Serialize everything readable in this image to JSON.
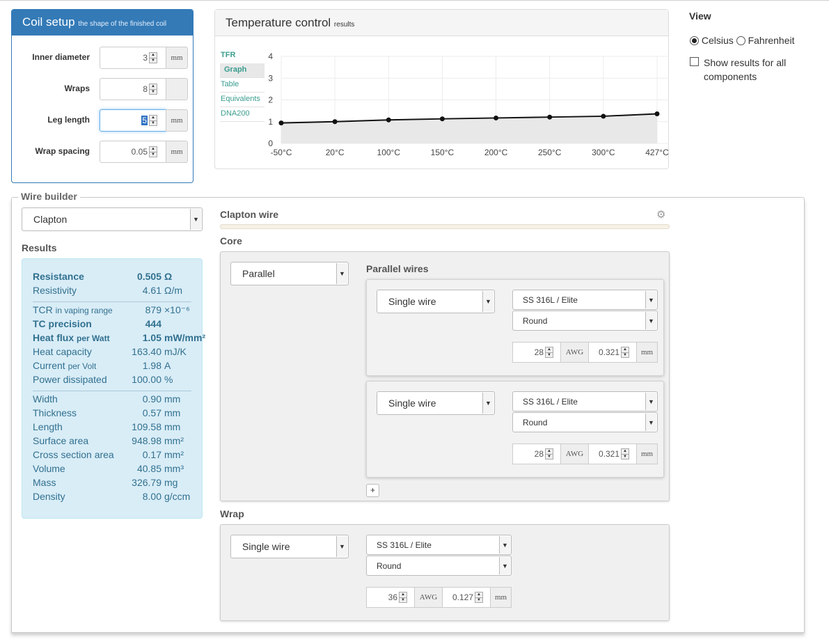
{
  "coil_setup": {
    "title": "Coil setup",
    "subtitle": "the shape of the finished coil",
    "fields": [
      {
        "label": "Inner diameter",
        "value": "3",
        "unit": "mm"
      },
      {
        "label": "Wraps",
        "value": "8",
        "unit": ""
      },
      {
        "label": "Leg length",
        "value": "5",
        "unit": "mm"
      },
      {
        "label": "Wrap spacing",
        "value": "0.05",
        "unit": "mm"
      }
    ]
  },
  "temperature_control": {
    "title": "Temperature control",
    "subtitle": "results",
    "tabs": [
      "TFR",
      "Graph",
      "Table",
      "Equivalents",
      "DNA200"
    ],
    "active_tab": "Graph"
  },
  "chart_data": {
    "type": "area",
    "x": [
      "-50°C",
      "20°C",
      "100°C",
      "150°C",
      "200°C",
      "250°C",
      "300°C",
      "427°C"
    ],
    "values": [
      0.94,
      1.0,
      1.08,
      1.13,
      1.17,
      1.21,
      1.25,
      1.36
    ],
    "yticks": [
      "0",
      "1",
      "2",
      "3",
      "4"
    ],
    "ylim": [
      0,
      4
    ],
    "grid": true,
    "line_color": "#111111",
    "fill_color": "#e8e8e8"
  },
  "view": {
    "title": "View",
    "celsius_label": "Celsius",
    "fahrenheit_label": "Fahrenheit",
    "unit_selected": "Celsius",
    "show_all_label": "Show results for all components",
    "show_all_checked": false
  },
  "wire_builder": {
    "legend": "Wire builder",
    "type_select": "Clapton",
    "wire_title": "Clapton wire",
    "core_label": "Core",
    "core_select": "Parallel",
    "parallel_label": "Parallel wires",
    "parallel_wires": [
      {
        "type": "Single wire",
        "material": "SS 316L / Elite",
        "shape": "Round",
        "awg": "28",
        "awg_unit": "AWG",
        "mm": "0.321",
        "mm_unit": "mm"
      },
      {
        "type": "Single wire",
        "material": "SS 316L / Elite",
        "shape": "Round",
        "awg": "28",
        "awg_unit": "AWG",
        "mm": "0.321",
        "mm_unit": "mm"
      }
    ],
    "add_label": "+",
    "wrap_label": "Wrap",
    "wrap": {
      "type": "Single wire",
      "material": "SS 316L / Elite",
      "shape": "Round",
      "awg": "36",
      "awg_unit": "AWG",
      "mm": "0.127",
      "mm_unit": "mm"
    }
  },
  "results": {
    "title": "Results",
    "rows": [
      {
        "label": "Resistance",
        "value": "0.505",
        "unit": "Ω"
      },
      {
        "label": "Resistivity",
        "value": "4.61",
        "unit": "Ω/m"
      },
      {
        "label": "TCR",
        "label_small": "in vaping range",
        "value": "879",
        "unit": "×10⁻⁶"
      },
      {
        "label": "TC precision",
        "value": "444",
        "unit": ""
      },
      {
        "label": "Heat flux",
        "label_small": "per Watt",
        "value": "1.05",
        "unit": "mW/mm²"
      },
      {
        "label": "Heat capacity",
        "value": "163.40",
        "unit": "mJ/K"
      },
      {
        "label": "Current",
        "label_small": "per Volt",
        "value": "1.98",
        "unit": "A"
      },
      {
        "label": "Power dissipated",
        "value": "100.00",
        "unit": "%"
      },
      {
        "label": "Width",
        "value": "0.90",
        "unit": "mm"
      },
      {
        "label": "Thickness",
        "value": "0.57",
        "unit": "mm"
      },
      {
        "label": "Length",
        "value": "109.58",
        "unit": "mm"
      },
      {
        "label": "Surface area",
        "value": "948.98",
        "unit": "mm²"
      },
      {
        "label": "Cross section area",
        "value": "0.17",
        "unit": "mm²"
      },
      {
        "label": "Volume",
        "value": "40.85",
        "unit": "mm³"
      },
      {
        "label": "Mass",
        "value": "326.79",
        "unit": "mg"
      },
      {
        "label": "Density",
        "value": "8.00",
        "unit": "g/ccm"
      }
    ]
  },
  "icons": {
    "settings": "gear-icon",
    "dropdown": "caret-down-icon",
    "spinner": "spin-arrows-icon"
  }
}
